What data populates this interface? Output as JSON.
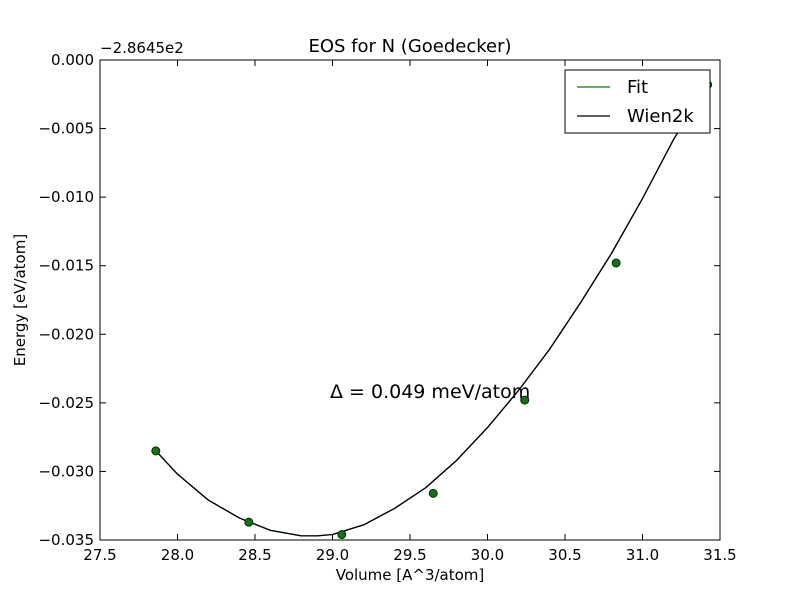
{
  "chart_data": {
    "type": "line",
    "title": "EOS for N (Goedecker)",
    "xlabel": "Volume [A^3/atom]",
    "ylabel": "Energy [eV/atom]",
    "offset_text": "−2.8645e2",
    "xlim": [
      27.5,
      31.5
    ],
    "ylim": [
      -0.035,
      0.0
    ],
    "x_ticks": [
      27.5,
      28.0,
      28.5,
      29.0,
      29.5,
      30.0,
      30.5,
      31.0,
      31.5
    ],
    "x_tick_labels": [
      "27.5",
      "28.0",
      "28.5",
      "29.0",
      "29.5",
      "30.0",
      "30.5",
      "31.0",
      "31.5"
    ],
    "y_ticks": [
      0.0,
      -0.005,
      -0.01,
      -0.015,
      -0.02,
      -0.025,
      -0.03,
      -0.035
    ],
    "y_tick_labels": [
      "0.000",
      "−0.005",
      "−0.010",
      "−0.015",
      "−0.020",
      "−0.025",
      "−0.030",
      "−0.035"
    ],
    "grid": false,
    "legend_position": "upper right",
    "annotation": "Δ = 0.049 meV/atom",
    "series": [
      {
        "name": "Fit",
        "kind": "line",
        "color": "#008000",
        "x": [
          27.86,
          28.0,
          28.2,
          28.4,
          28.6,
          28.8,
          28.9,
          29.0,
          29.2,
          29.4,
          29.6,
          29.8,
          30.0,
          30.2,
          30.4,
          30.6,
          30.8,
          31.0,
          31.2,
          31.42
        ],
        "y": [
          -0.0285,
          -0.0302,
          -0.0321,
          -0.0334,
          -0.0343,
          -0.0347,
          -0.0347,
          -0.0346,
          -0.0339,
          -0.0327,
          -0.0312,
          -0.0292,
          -0.0268,
          -0.0241,
          -0.0211,
          -0.0177,
          -0.0141,
          -0.0101,
          -0.0058,
          -0.0018
        ]
      },
      {
        "name": "Wien2k",
        "kind": "line",
        "color": "#000000",
        "x": [
          27.86,
          28.0,
          28.2,
          28.4,
          28.6,
          28.8,
          28.9,
          29.0,
          29.2,
          29.4,
          29.6,
          29.8,
          30.0,
          30.2,
          30.4,
          30.6,
          30.8,
          31.0,
          31.2,
          31.42
        ],
        "y": [
          -0.0285,
          -0.0302,
          -0.0321,
          -0.0334,
          -0.0343,
          -0.0347,
          -0.0347,
          -0.0346,
          -0.0339,
          -0.0327,
          -0.0312,
          -0.0292,
          -0.0268,
          -0.0241,
          -0.0211,
          -0.0177,
          -0.0141,
          -0.0101,
          -0.0058,
          -0.0018
        ]
      },
      {
        "kind": "scatter",
        "color": "#1a6e1a",
        "x": [
          27.86,
          28.46,
          29.06,
          29.65,
          30.24,
          30.83,
          31.42
        ],
        "y": [
          -0.0285,
          -0.0337,
          -0.0346,
          -0.0316,
          -0.0248,
          -0.0148,
          -0.0018
        ]
      }
    ]
  }
}
